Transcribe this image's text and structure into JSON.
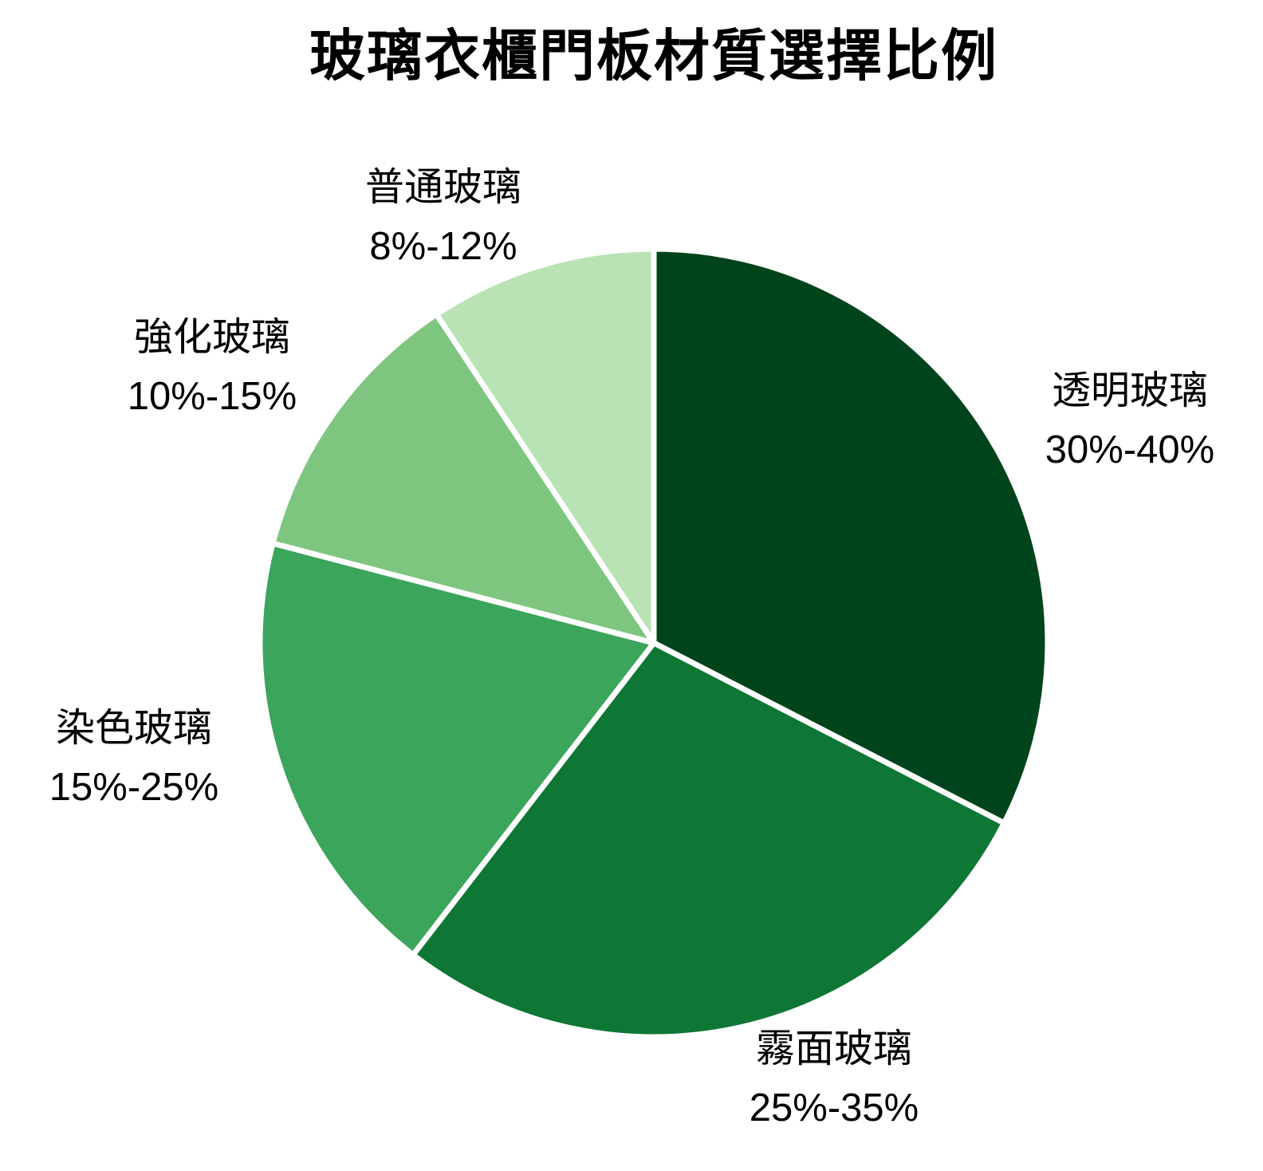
{
  "chart_data": {
    "type": "pie",
    "title": "玻璃衣櫃門板材質選擇比例",
    "slices": [
      {
        "label": "透明玻璃",
        "range": "30%-40%",
        "value": 35,
        "color": "#00441c"
      },
      {
        "label": "霧面玻璃",
        "range": "25%-35%",
        "value": 30,
        "color": "#0e7735"
      },
      {
        "label": "染色玻璃",
        "range": "15%-25%",
        "value": 20,
        "color": "#3ba55b"
      },
      {
        "label": "強化玻璃",
        "range": "10%-15%",
        "value": 12.5,
        "color": "#7ec67f"
      },
      {
        "label": "普通玻璃",
        "range": "8%-12%",
        "value": 10,
        "color": "#b9e3b5"
      }
    ],
    "start_angle_deg": 0,
    "direction": "clockwise",
    "separator_color": "#ffffff",
    "background": "#ffffff",
    "text_color": "#000000",
    "legend": "none",
    "labels_position": "outside"
  }
}
